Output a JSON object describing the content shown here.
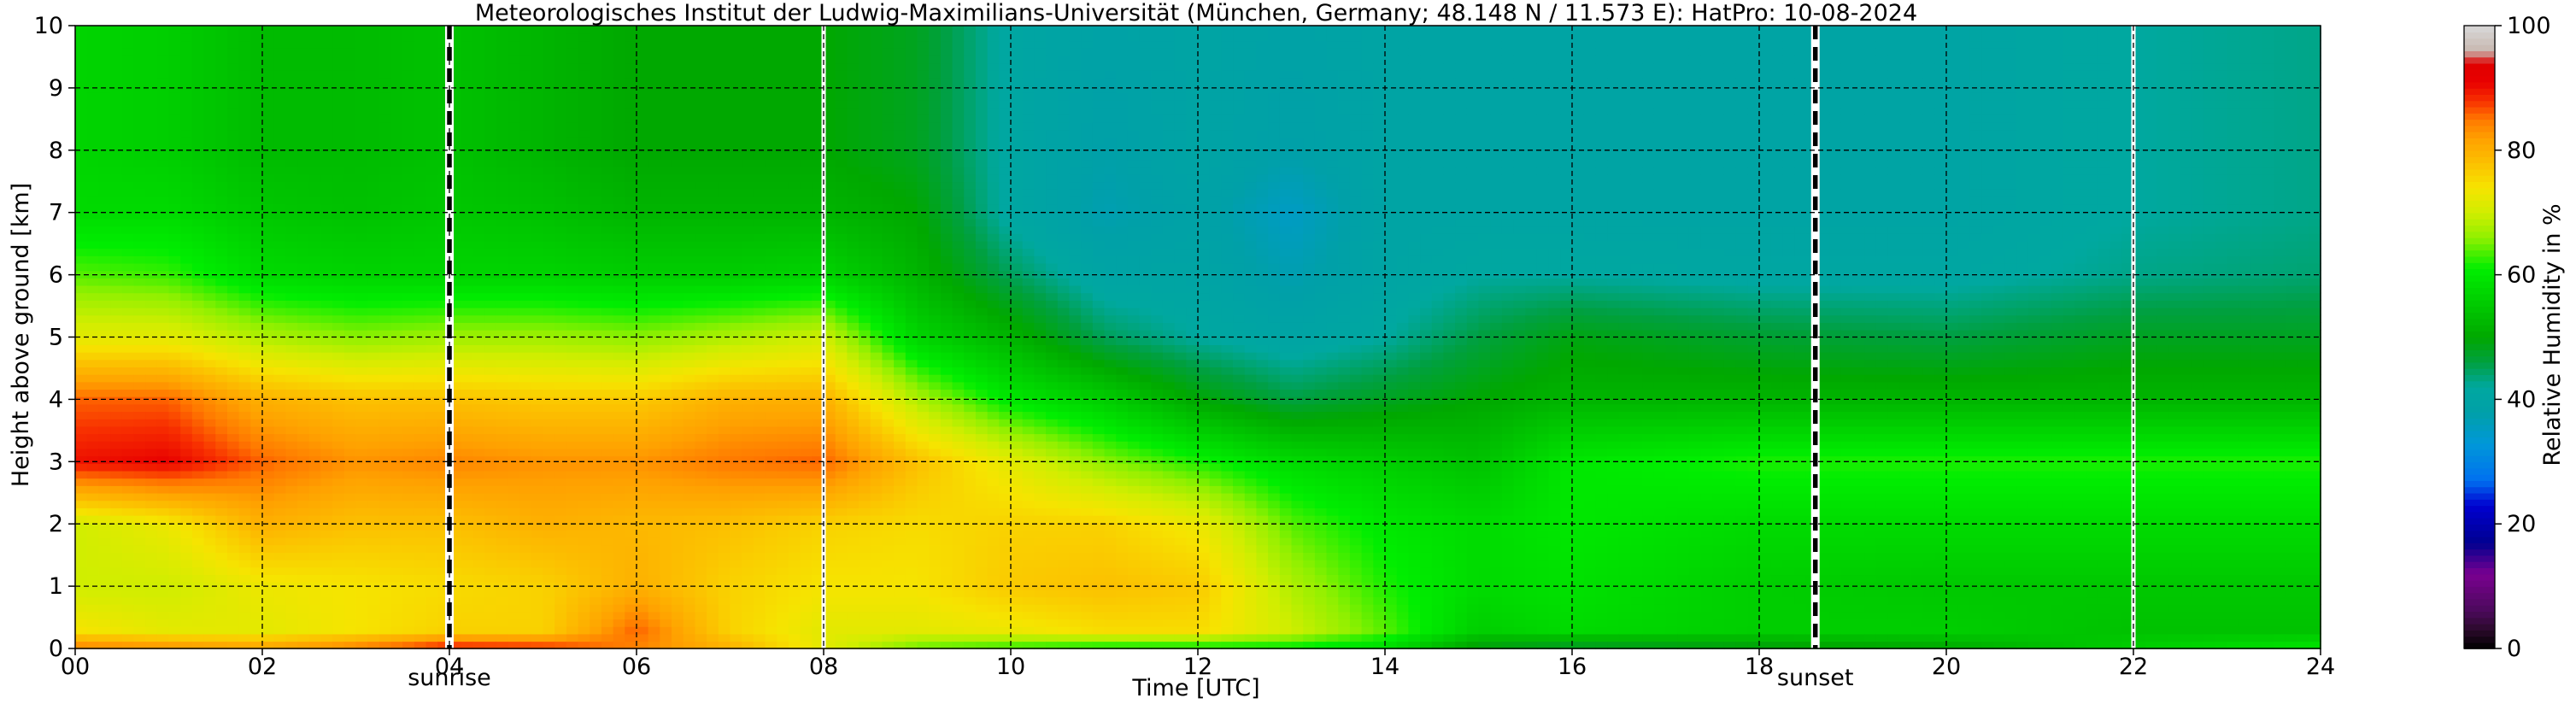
{
  "chart_data": {
    "type": "heatmap",
    "title": "Meteorologisches Institut der Ludwig-Maximilians-Universität (München, Germany; 48.148 N / 11.573 E):    HatPro: 10-08-2024",
    "xlabel": "Time [UTC]",
    "ylabel": "Height above ground [km]",
    "xlim": [
      0,
      24
    ],
    "ylim": [
      0,
      10
    ],
    "x_ticks": [
      "00",
      "02",
      "04",
      "06",
      "08",
      "10",
      "12",
      "14",
      "16",
      "18",
      "20",
      "22",
      "24"
    ],
    "y_ticks": [
      "0",
      "1",
      "2",
      "3",
      "4",
      "5",
      "6",
      "7",
      "8",
      "9",
      "10"
    ],
    "grid": true,
    "colorbar": {
      "label": "Relative Humidity in %",
      "range": [
        0,
        100
      ],
      "ticks": [
        "0",
        "20",
        "40",
        "60",
        "80",
        "100"
      ]
    },
    "annotations": [
      {
        "text": "sunrise",
        "x": 4.0
      },
      {
        "text": "sunset",
        "x": 18.6
      }
    ],
    "sunrise_time": 4.0,
    "sunset_time": 18.6,
    "gap_times": [
      8.0,
      22.0
    ],
    "humidity_profiles": [
      {
        "t": 0.0,
        "h": [
          0,
          0.3,
          1,
          2,
          3,
          4,
          5,
          6,
          7,
          8,
          10
        ],
        "rh": [
          85,
          74,
          70,
          70,
          90,
          86,
          72,
          64,
          58,
          57,
          57
        ]
      },
      {
        "t": 1.0,
        "h": [
          0,
          0.3,
          1,
          2,
          3,
          4,
          5,
          6,
          7,
          8,
          10
        ],
        "rh": [
          84,
          72,
          70,
          73,
          91,
          86,
          72,
          63,
          58,
          56,
          56
        ]
      },
      {
        "t": 2.0,
        "h": [
          0,
          0.3,
          1,
          2,
          3,
          4,
          5,
          6,
          7,
          8,
          10
        ],
        "rh": [
          82,
          72,
          73,
          80,
          86,
          80,
          68,
          58,
          55,
          53,
          53
        ]
      },
      {
        "t": 3.0,
        "h": [
          0,
          0.3,
          1,
          2,
          3,
          4,
          5,
          6,
          7,
          8,
          10
        ],
        "rh": [
          85,
          74,
          74,
          78,
          83,
          78,
          66,
          57,
          54,
          53,
          53
        ]
      },
      {
        "t": 4.0,
        "h": [
          0,
          0.3,
          1,
          2,
          3,
          4,
          5,
          6,
          7,
          8,
          10
        ],
        "rh": [
          90,
          76,
          75,
          78,
          84,
          78,
          67,
          57,
          55,
          54,
          54
        ]
      },
      {
        "t": 5.0,
        "h": [
          0,
          0.3,
          1,
          2,
          3,
          4,
          5,
          6,
          7,
          8,
          10
        ],
        "rh": [
          89,
          76,
          76,
          80,
          83,
          77,
          67,
          57,
          54,
          52,
          52
        ]
      },
      {
        "t": 6.0,
        "h": [
          0,
          0.3,
          1,
          2,
          3,
          4,
          5,
          6,
          7,
          8,
          10
        ],
        "rh": [
          84,
          86,
          80,
          79,
          83,
          77,
          66,
          56,
          52,
          50,
          50
        ]
      },
      {
        "t": 7.0,
        "h": [
          0,
          0.3,
          1,
          2,
          3,
          4,
          5,
          6,
          7,
          8,
          10
        ],
        "rh": [
          80,
          76,
          76,
          78,
          85,
          80,
          68,
          56,
          52,
          50,
          50
        ]
      },
      {
        "t": 8.0,
        "h": [
          0,
          0.3,
          1,
          2,
          3,
          4,
          5,
          6,
          7,
          8,
          10
        ],
        "rh": [
          72,
          72,
          74,
          76,
          86,
          80,
          70,
          57,
          52,
          50,
          50
        ]
      },
      {
        "t": 9.0,
        "h": [
          0,
          0.3,
          1,
          2,
          3,
          4,
          5,
          6,
          7,
          8,
          10
        ],
        "rh": [
          64,
          72,
          74,
          75,
          78,
          68,
          57,
          52,
          50,
          48,
          48
        ]
      },
      {
        "t": 10.0,
        "h": [
          0,
          0.3,
          1,
          2,
          3,
          4,
          5,
          6,
          7,
          8,
          10
        ],
        "rh": [
          62,
          73,
          77,
          76,
          72,
          60,
          52,
          45,
          41,
          41,
          41
        ]
      },
      {
        "t": 11.0,
        "h": [
          0,
          0.3,
          1,
          2,
          3,
          4,
          5,
          6,
          7,
          8,
          10
        ],
        "rh": [
          60,
          75,
          78,
          76,
          66,
          56,
          45,
          40,
          37,
          38,
          39
        ]
      },
      {
        "t": 12.0,
        "h": [
          0,
          0.3,
          1,
          2,
          3,
          4,
          5,
          6,
          7,
          8,
          10
        ],
        "rh": [
          60,
          75,
          77,
          73,
          62,
          50,
          42,
          40,
          39,
          40,
          40
        ]
      },
      {
        "t": 13.0,
        "h": [
          0,
          0.3,
          1,
          2,
          3,
          4,
          5,
          6,
          7,
          8,
          10
        ],
        "rh": [
          60,
          70,
          68,
          64,
          58,
          46,
          40,
          37,
          35,
          38,
          39
        ]
      },
      {
        "t": 14.0,
        "h": [
          0,
          0.3,
          1,
          2,
          3,
          4,
          5,
          6,
          7,
          8,
          10
        ],
        "rh": [
          58,
          64,
          62,
          60,
          56,
          48,
          42,
          40,
          40,
          40,
          40
        ]
      },
      {
        "t": 15.0,
        "h": [
          0,
          0.3,
          1,
          2,
          3,
          4,
          5,
          6,
          7,
          8,
          10
        ],
        "rh": [
          48,
          56,
          58,
          58,
          54,
          50,
          46,
          42,
          40,
          40,
          40
        ]
      },
      {
        "t": 16.0,
        "h": [
          0,
          0.3,
          1,
          2,
          3,
          4,
          5,
          6,
          7,
          8,
          10
        ],
        "rh": [
          46,
          58,
          59,
          60,
          60,
          52,
          49,
          42,
          40,
          40,
          40
        ]
      },
      {
        "t": 18.0,
        "h": [
          0,
          0.3,
          1,
          2,
          3,
          4,
          5,
          6,
          7,
          8,
          10
        ],
        "rh": [
          48,
          56,
          56,
          58,
          62,
          52,
          47,
          41,
          40,
          40,
          40
        ]
      },
      {
        "t": 20.0,
        "h": [
          0,
          0.3,
          1,
          2,
          3,
          4,
          5,
          6,
          7,
          8,
          10
        ],
        "rh": [
          50,
          56,
          55,
          58,
          62,
          52,
          46,
          41,
          40,
          40,
          40
        ]
      },
      {
        "t": 22.0,
        "h": [
          0,
          0.3,
          1,
          2,
          3,
          4,
          5,
          6,
          7,
          8,
          10
        ],
        "rh": [
          56,
          54,
          55,
          58,
          62,
          52,
          48,
          43,
          42,
          42,
          42
        ]
      },
      {
        "t": 24.0,
        "h": [
          0,
          0.3,
          1,
          2,
          3,
          4,
          5,
          6,
          7,
          8,
          10
        ],
        "rh": [
          60,
          54,
          55,
          58,
          62,
          52,
          48,
          44,
          43,
          43,
          43
        ]
      }
    ],
    "colors": {
      "background": "#ffffff",
      "grid": "#000000",
      "colormap_stops": [
        {
          "v": 0,
          "c": "#000000"
        },
        {
          "v": 3,
          "c": "#2a0a2a"
        },
        {
          "v": 6,
          "c": "#4a0a5a"
        },
        {
          "v": 12,
          "c": "#7a0090"
        },
        {
          "v": 17,
          "c": "#000090"
        },
        {
          "v": 23,
          "c": "#0000d0"
        },
        {
          "v": 27,
          "c": "#0070f0"
        },
        {
          "v": 33,
          "c": "#0098d8"
        },
        {
          "v": 38,
          "c": "#00a0a8"
        },
        {
          "v": 42,
          "c": "#00a8a0"
        },
        {
          "v": 46,
          "c": "#00a040"
        },
        {
          "v": 50,
          "c": "#00a800"
        },
        {
          "v": 55,
          "c": "#00c800"
        },
        {
          "v": 61,
          "c": "#00ee00"
        },
        {
          "v": 66,
          "c": "#90f000"
        },
        {
          "v": 70,
          "c": "#d0ee00"
        },
        {
          "v": 74,
          "c": "#f6e400"
        },
        {
          "v": 78,
          "c": "#fcc000"
        },
        {
          "v": 82,
          "c": "#ffa000"
        },
        {
          "v": 85,
          "c": "#ff7800"
        },
        {
          "v": 88,
          "c": "#f83000"
        },
        {
          "v": 91,
          "c": "#e80000"
        },
        {
          "v": 94,
          "c": "#e00000"
        },
        {
          "v": 96,
          "c": "#c8b8b0"
        },
        {
          "v": 100,
          "c": "#d8d8d8"
        }
      ]
    }
  }
}
